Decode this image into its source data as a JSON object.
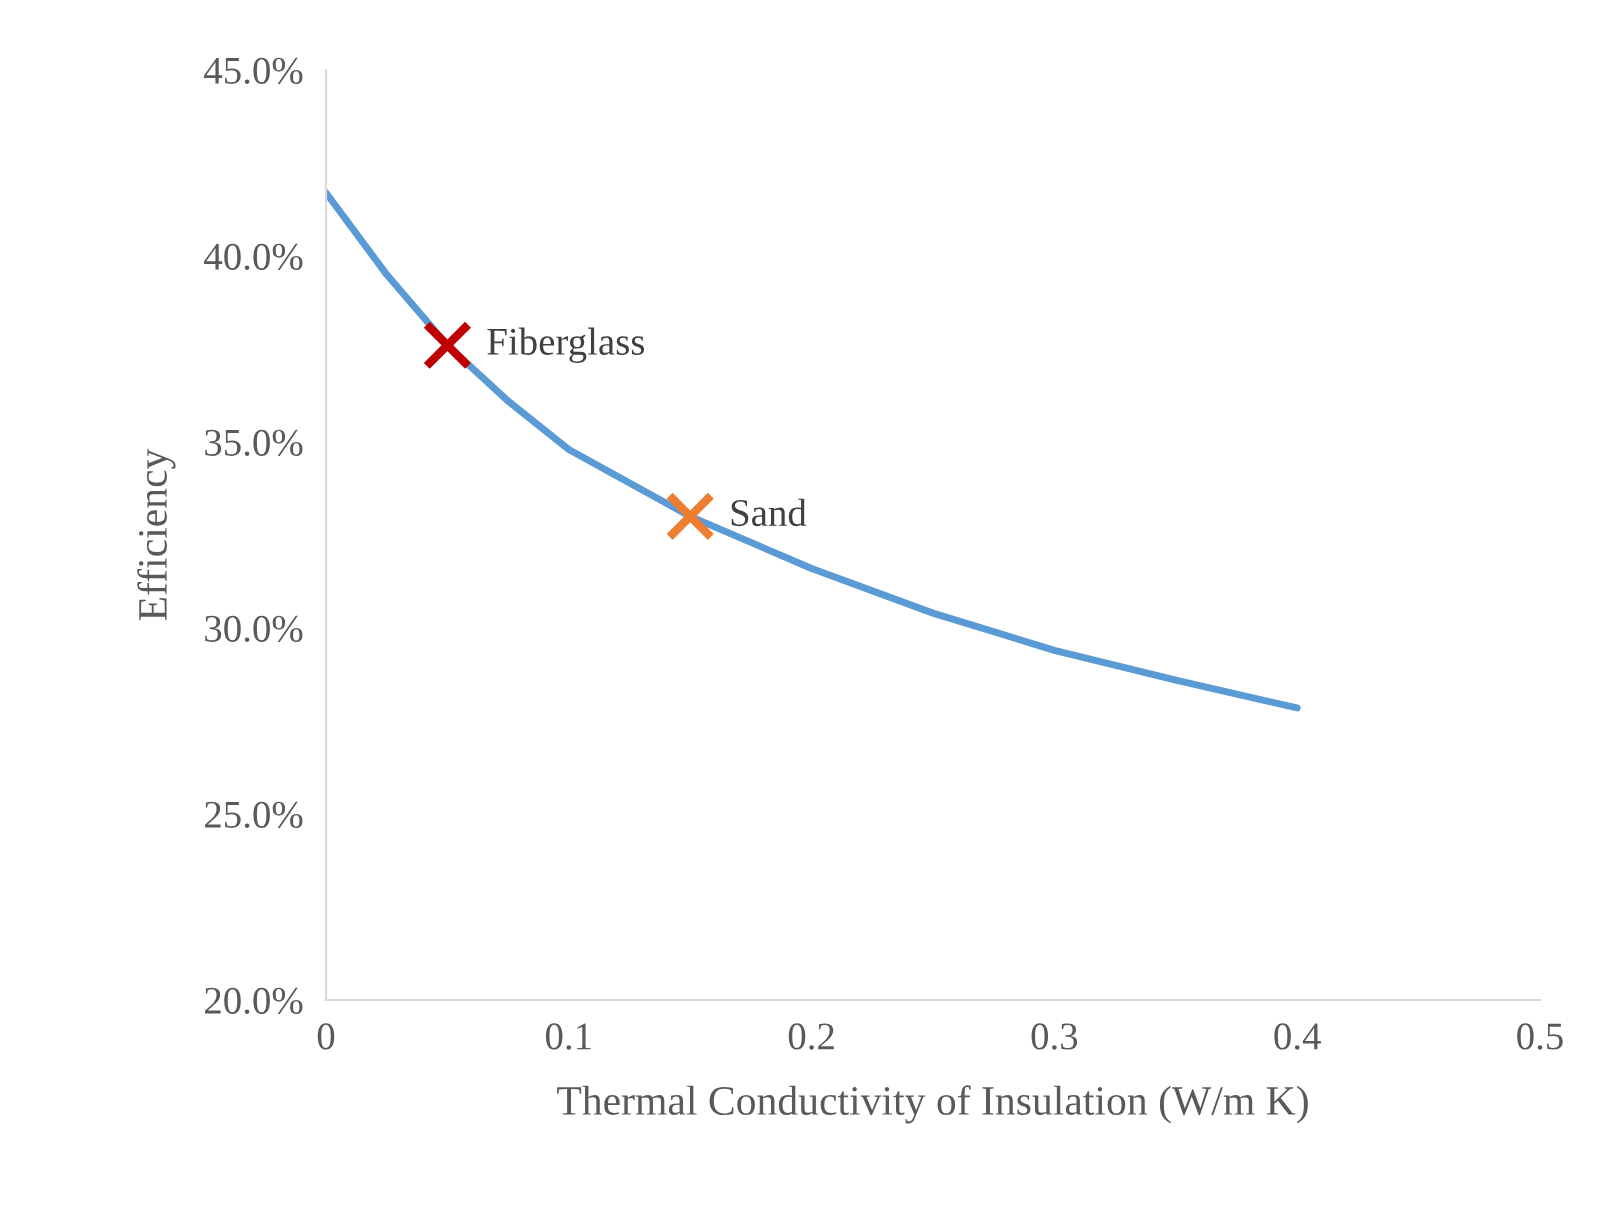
{
  "chart_data": {
    "type": "line",
    "xlabel": "Thermal Conductivity of Insulation (W/m K)",
    "ylabel": "Efficiency",
    "xlim": [
      0,
      0.5
    ],
    "xticks": [
      0,
      0.1,
      0.2,
      0.3,
      0.4,
      0.5
    ],
    "ylim": [
      20,
      45
    ],
    "yticks": [
      {
        "value": 20,
        "label": "20.0%"
      },
      {
        "value": 25,
        "label": "25.0%"
      },
      {
        "value": 30,
        "label": "30.0%"
      },
      {
        "value": 35,
        "label": "35.0%"
      },
      {
        "value": 40,
        "label": "40.0%"
      },
      {
        "value": 45,
        "label": "45.0%"
      }
    ],
    "grid": false,
    "legend": false,
    "series": [
      {
        "color": "#5b9bd5",
        "marker": "none",
        "x": [
          0,
          0.025,
          0.05,
          0.075,
          0.1,
          0.15,
          0.2,
          0.25,
          0.3,
          0.35,
          0.4
        ],
        "values": [
          41.7,
          39.5,
          37.6,
          36.1,
          34.8,
          33.0,
          31.6,
          30.4,
          29.4,
          28.6,
          27.85
        ]
      },
      {
        "type": "scatter",
        "name": "Fiberglass",
        "color": "#c00000",
        "marker": "cross",
        "x": [
          0.05
        ],
        "values": [
          37.6
        ]
      },
      {
        "type": "scatter",
        "name": "Sand",
        "color": "#ed7d31",
        "marker": "cross",
        "x": [
          0.15
        ],
        "values": [
          33.0
        ]
      }
    ]
  }
}
